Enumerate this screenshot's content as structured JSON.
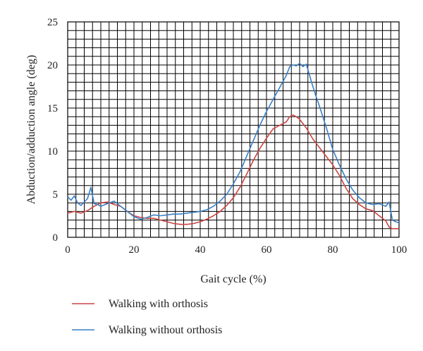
{
  "chart_data": {
    "type": "line",
    "xlabel": "Gait cycle (%)",
    "ylabel": "Abduction/adduction angle (deg)",
    "xlim": [
      0,
      100
    ],
    "ylim": [
      0,
      25
    ],
    "x_ticks": [
      0,
      20,
      40,
      60,
      80,
      100
    ],
    "y_ticks": [
      0,
      5,
      10,
      15,
      20,
      25
    ],
    "grid": true,
    "legend_position": "bottom",
    "series": [
      {
        "name": "Walking with orthosis",
        "color": "#cc4444",
        "x": [
          0,
          2,
          4,
          6,
          8,
          10,
          12,
          14,
          16,
          18,
          20,
          22,
          24,
          26,
          28,
          30,
          32,
          34,
          36,
          38,
          40,
          42,
          44,
          46,
          48,
          50,
          52,
          54,
          56,
          58,
          60,
          62,
          64,
          65,
          66,
          67,
          68,
          69,
          70,
          72,
          74,
          76,
          78,
          80,
          82,
          84,
          86,
          88,
          90,
          92,
          94,
          96,
          97,
          98,
          100
        ],
        "y": [
          2.8,
          3.0,
          2.8,
          3.1,
          3.6,
          4.0,
          4.1,
          3.8,
          3.6,
          3.0,
          2.5,
          2.3,
          2.2,
          2.2,
          2.0,
          1.8,
          1.6,
          1.5,
          1.5,
          1.6,
          1.8,
          2.1,
          2.5,
          3.0,
          3.7,
          4.6,
          5.8,
          7.3,
          8.9,
          10.3,
          11.5,
          12.6,
          13.0,
          13.2,
          13.4,
          14.0,
          14.2,
          14.0,
          13.7,
          12.7,
          11.4,
          10.4,
          9.4,
          8.4,
          7.2,
          5.7,
          4.5,
          3.8,
          3.3,
          3.1,
          2.5,
          1.9,
          1.2,
          1.0,
          1.0
        ]
      },
      {
        "name": "Walking without orthosis",
        "color": "#3a7fc6",
        "x": [
          0,
          1,
          2,
          3,
          4,
          5,
          6,
          7,
          8,
          9,
          10,
          12,
          14,
          16,
          18,
          20,
          22,
          24,
          26,
          28,
          30,
          32,
          34,
          36,
          38,
          40,
          42,
          44,
          46,
          48,
          50,
          52,
          54,
          56,
          58,
          60,
          62,
          64,
          66,
          67,
          68,
          69,
          70,
          71,
          72,
          73,
          74,
          75,
          76,
          78,
          80,
          82,
          84,
          86,
          88,
          90,
          92,
          94,
          96,
          97,
          98,
          99,
          100
        ],
        "y": [
          4.7,
          4.3,
          4.8,
          4.0,
          3.7,
          4.1,
          4.5,
          5.8,
          3.9,
          3.8,
          3.6,
          3.9,
          4.2,
          3.6,
          3.0,
          2.4,
          2.1,
          2.3,
          2.6,
          2.5,
          2.6,
          2.7,
          2.7,
          2.8,
          2.9,
          3.0,
          3.2,
          3.6,
          4.2,
          5.0,
          6.2,
          7.6,
          9.4,
          11.2,
          13.0,
          14.6,
          16.0,
          17.4,
          18.8,
          19.8,
          20.0,
          19.9,
          20.2,
          19.8,
          20.1,
          18.8,
          17.5,
          16.3,
          15.2,
          12.8,
          10.2,
          8.4,
          6.8,
          5.5,
          4.6,
          4.0,
          3.8,
          3.9,
          3.6,
          4.1,
          2.0,
          1.8,
          1.7
        ]
      }
    ]
  }
}
